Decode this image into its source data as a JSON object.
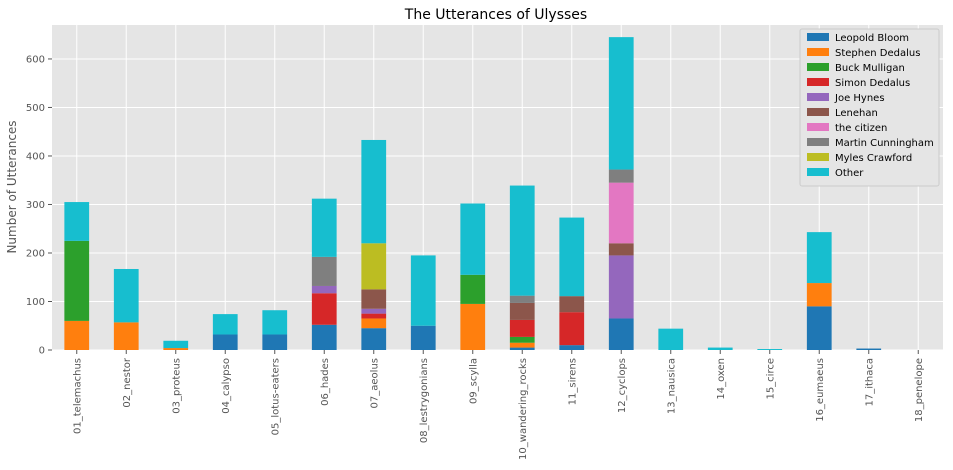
{
  "chart_data": {
    "type": "bar",
    "stacked": true,
    "title": "The Utterances of Ulysses",
    "xlabel": "",
    "ylabel": "Number of Utterances",
    "ylim": [
      0,
      670
    ],
    "yticks": [
      0,
      100,
      200,
      300,
      400,
      500,
      600
    ],
    "grid": true,
    "legend_position": "top-right",
    "background": "#e5e5e5",
    "categories": [
      "01_telemachus",
      "02_nestor",
      "03_proteus",
      "04_calypso",
      "05_lotus-eaters",
      "06_hades",
      "07_aeolus",
      "08_lestrygonians",
      "09_scylla",
      "10_wandering_rocks",
      "11_sirens",
      "12_cyclops",
      "13_nausica",
      "14_oxen",
      "15_circe",
      "16_eumaeus",
      "17_ithaca",
      "18_penelope"
    ],
    "series": [
      {
        "name": "Leopold Bloom",
        "color": "#1f77b4",
        "values": [
          0,
          0,
          0,
          32,
          32,
          52,
          45,
          50,
          0,
          5,
          10,
          65,
          0,
          0,
          0,
          90,
          3,
          0
        ]
      },
      {
        "name": "Stephen Dedalus",
        "color": "#ff7f0e",
        "values": [
          60,
          57,
          4,
          0,
          0,
          0,
          20,
          0,
          95,
          10,
          0,
          0,
          0,
          0,
          0,
          48,
          0,
          0
        ]
      },
      {
        "name": "Buck Mulligan",
        "color": "#2ca02c",
        "values": [
          165,
          0,
          0,
          0,
          0,
          0,
          0,
          0,
          60,
          12,
          0,
          0,
          0,
          0,
          0,
          0,
          0,
          0
        ]
      },
      {
        "name": "Simon Dedalus",
        "color": "#d62728",
        "values": [
          0,
          0,
          0,
          0,
          0,
          65,
          10,
          0,
          0,
          35,
          68,
          0,
          0,
          0,
          0,
          0,
          0,
          0
        ]
      },
      {
        "name": "Joe Hynes",
        "color": "#9467bd",
        "values": [
          0,
          0,
          0,
          0,
          0,
          15,
          10,
          0,
          0,
          0,
          0,
          130,
          0,
          0,
          0,
          0,
          0,
          0
        ]
      },
      {
        "name": "Lenehan",
        "color": "#8c564b",
        "values": [
          0,
          0,
          0,
          0,
          0,
          0,
          40,
          0,
          0,
          35,
          33,
          25,
          0,
          0,
          0,
          0,
          0,
          0
        ]
      },
      {
        "name": "the citizen",
        "color": "#e377c2",
        "values": [
          0,
          0,
          0,
          0,
          0,
          0,
          0,
          0,
          0,
          0,
          0,
          125,
          0,
          0,
          0,
          0,
          0,
          0
        ]
      },
      {
        "name": "Martin Cunningham",
        "color": "#7f7f7f",
        "values": [
          0,
          0,
          0,
          0,
          0,
          60,
          0,
          0,
          0,
          15,
          0,
          27,
          0,
          0,
          0,
          0,
          0,
          0
        ]
      },
      {
        "name": "Myles Crawford",
        "color": "#bcbd22",
        "values": [
          0,
          0,
          0,
          0,
          0,
          0,
          95,
          0,
          0,
          0,
          0,
          0,
          0,
          0,
          0,
          0,
          0,
          0
        ]
      },
      {
        "name": "Other",
        "color": "#17becf",
        "values": [
          80,
          110,
          15,
          42,
          50,
          120,
          213,
          145,
          147,
          227,
          162,
          273,
          44,
          5,
          2,
          105,
          0,
          0
        ]
      }
    ]
  }
}
